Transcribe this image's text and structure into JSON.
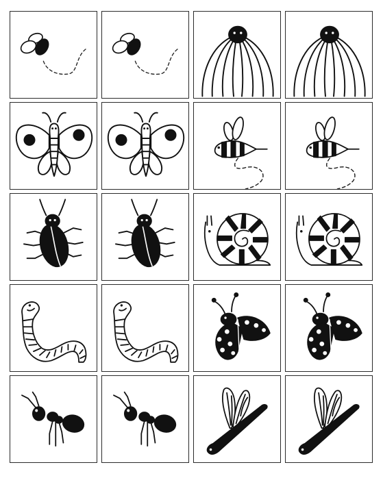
{
  "game": {
    "type": "memory-matching-cards",
    "grid": {
      "rows": 5,
      "columns": 4
    },
    "cards": [
      {
        "row": 0,
        "col": 0,
        "picture": "fly-icon"
      },
      {
        "row": 0,
        "col": 1,
        "picture": "fly-icon"
      },
      {
        "row": 0,
        "col": 2,
        "picture": "spider-icon"
      },
      {
        "row": 0,
        "col": 3,
        "picture": "spider-icon"
      },
      {
        "row": 1,
        "col": 0,
        "picture": "butterfly-icon"
      },
      {
        "row": 1,
        "col": 1,
        "picture": "butterfly-icon"
      },
      {
        "row": 1,
        "col": 2,
        "picture": "bee-icon"
      },
      {
        "row": 1,
        "col": 3,
        "picture": "bee-icon"
      },
      {
        "row": 2,
        "col": 0,
        "picture": "beetle-icon"
      },
      {
        "row": 2,
        "col": 1,
        "picture": "beetle-icon"
      },
      {
        "row": 2,
        "col": 2,
        "picture": "snail-icon"
      },
      {
        "row": 2,
        "col": 3,
        "picture": "snail-icon"
      },
      {
        "row": 3,
        "col": 0,
        "picture": "worm-icon"
      },
      {
        "row": 3,
        "col": 1,
        "picture": "worm-icon"
      },
      {
        "row": 3,
        "col": 2,
        "picture": "ladybug-icon"
      },
      {
        "row": 3,
        "col": 3,
        "picture": "ladybug-icon"
      },
      {
        "row": 4,
        "col": 0,
        "picture": "ant-icon"
      },
      {
        "row": 4,
        "col": 1,
        "picture": "ant-icon"
      },
      {
        "row": 4,
        "col": 2,
        "picture": "dragonfly-icon"
      },
      {
        "row": 4,
        "col": 3,
        "picture": "dragonfly-icon"
      }
    ]
  }
}
